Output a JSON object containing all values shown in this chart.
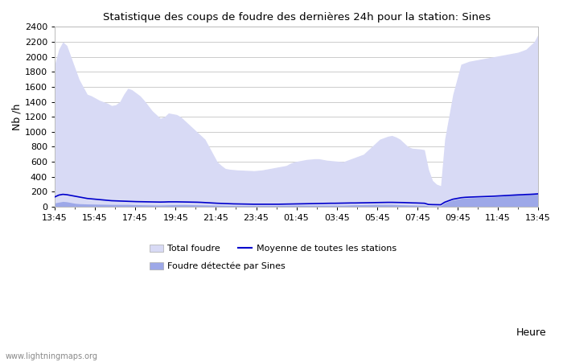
{
  "title": "Statistique des coups de foudre des dernières 24h pour la station: Sines",
  "xlabel": "Heure",
  "ylabel": "Nb /h",
  "xlim_labels": [
    "13:45",
    "15:45",
    "17:45",
    "19:45",
    "21:45",
    "23:45",
    "01:45",
    "03:45",
    "05:45",
    "07:45",
    "09:45",
    "11:45",
    "13:45"
  ],
  "ylim": [
    0,
    2400
  ],
  "yticks": [
    0,
    200,
    400,
    600,
    800,
    1000,
    1200,
    1400,
    1600,
    1800,
    2000,
    2200,
    2400
  ],
  "bg_color": "#ffffff",
  "plot_bg_color": "#ffffff",
  "grid_color": "#cccccc",
  "fill_total_color": "#d8daf5",
  "fill_sines_color": "#9da8e8",
  "line_color": "#0000cc",
  "watermark": "www.lightningmaps.org",
  "legend_items": [
    "Total foudre",
    "Moyenne de toutes les stations",
    "Foudre détectée par Sines"
  ],
  "total_foudre": [
    1900,
    2100,
    2200,
    2150,
    2000,
    1850,
    1700,
    1600,
    1500,
    1480,
    1450,
    1420,
    1400,
    1380,
    1350,
    1360,
    1400,
    1500,
    1580,
    1560,
    1520,
    1480,
    1420,
    1350,
    1280,
    1230,
    1180,
    1200,
    1250,
    1240,
    1230,
    1200,
    1150,
    1100,
    1050,
    1000,
    950,
    900,
    800,
    700,
    600,
    550,
    510,
    500,
    495,
    490,
    488,
    485,
    483,
    480,
    485,
    490,
    500,
    510,
    520,
    530,
    540,
    550,
    580,
    600,
    610,
    620,
    630,
    635,
    640,
    640,
    630,
    620,
    615,
    610,
    605,
    600,
    620,
    640,
    660,
    680,
    700,
    750,
    800,
    850,
    900,
    920,
    940,
    950,
    930,
    900,
    850,
    800,
    780,
    775,
    770,
    760,
    500,
    350,
    300,
    280,
    900,
    1200,
    1500,
    1700,
    1900,
    1920,
    1940,
    1950,
    1960,
    1970,
    1980,
    1990,
    2000,
    2010,
    2020,
    2030,
    2040,
    2050,
    2060,
    2080,
    2100,
    2150,
    2200,
    2300
  ],
  "sines_foudre": [
    50,
    60,
    70,
    65,
    55,
    45,
    40,
    38,
    36,
    35,
    34,
    33,
    32,
    31,
    30,
    30,
    30,
    30,
    30,
    28,
    27,
    26,
    25,
    24,
    23,
    22,
    22,
    23,
    25,
    26,
    27,
    28,
    28,
    27,
    26,
    25,
    24,
    23,
    22,
    21,
    20,
    19,
    18,
    17,
    16,
    16,
    15,
    15,
    15,
    15,
    15,
    15,
    15,
    15,
    15,
    16,
    17,
    17,
    18,
    19,
    20,
    20,
    20,
    20,
    20,
    20,
    20,
    20,
    20,
    20,
    20,
    20,
    22,
    24,
    25,
    26,
    27,
    28,
    29,
    30,
    30,
    30,
    30,
    30,
    28,
    26,
    25,
    23,
    22,
    21,
    20,
    20,
    10,
    10,
    10,
    10,
    50,
    70,
    90,
    100,
    110,
    115,
    118,
    120,
    122,
    124,
    126,
    128,
    130,
    135,
    140,
    145,
    150,
    155,
    160,
    162,
    165,
    168,
    170,
    175
  ],
  "moyenne": [
    130,
    155,
    165,
    160,
    150,
    140,
    130,
    120,
    110,
    105,
    100,
    95,
    90,
    85,
    80,
    78,
    76,
    74,
    72,
    70,
    68,
    67,
    66,
    65,
    64,
    63,
    62,
    63,
    65,
    65,
    65,
    64,
    63,
    62,
    61,
    60,
    58,
    55,
    52,
    49,
    46,
    44,
    42,
    40,
    38,
    37,
    36,
    35,
    34,
    33,
    33,
    33,
    33,
    33,
    33,
    33,
    34,
    35,
    36,
    37,
    38,
    39,
    40,
    41,
    42,
    43,
    44,
    45,
    46,
    46,
    47,
    48,
    49,
    50,
    50,
    51,
    52,
    53,
    54,
    55,
    56,
    57,
    58,
    58,
    57,
    56,
    55,
    53,
    51,
    50,
    48,
    46,
    30,
    28,
    27,
    26,
    60,
    80,
    100,
    110,
    120,
    125,
    128,
    130,
    132,
    134,
    136,
    138,
    140,
    143,
    146,
    149,
    152,
    155,
    158,
    160,
    163,
    165,
    168,
    172
  ],
  "n_points": 120
}
